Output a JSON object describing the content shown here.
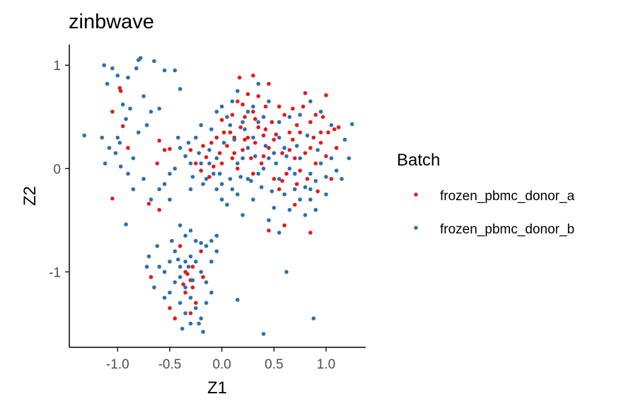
{
  "chart_data": {
    "type": "scatter",
    "title": "zinbwave",
    "xlabel": "Z1",
    "ylabel": "Z2",
    "xlim": [
      -1.45,
      1.38
    ],
    "ylim": [
      -1.73,
      1.2
    ],
    "xticks": [
      -1.0,
      -0.5,
      0.0,
      0.5,
      1.0
    ],
    "xtick_labels": [
      "-1.0",
      "-0.5",
      "0.0",
      "0.5",
      "1.0"
    ],
    "yticks": [
      -1,
      0,
      1
    ],
    "ytick_labels": [
      "-1",
      "0",
      "1"
    ],
    "grid": false,
    "legend": {
      "title": "Batch",
      "position": "right",
      "entries": [
        {
          "label": "frozen_pbmc_donor_a",
          "color": "#e41a1c"
        },
        {
          "label": "frozen_pbmc_donor_b",
          "color": "#2c6fad"
        }
      ]
    },
    "series": [
      {
        "name": "frozen_pbmc_donor_a",
        "color": "#e41a1c",
        "points": [
          [
            -0.98,
            0.78
          ],
          [
            -0.97,
            0.75
          ],
          [
            -0.95,
            0.41
          ],
          [
            -1.05,
            0.55
          ],
          [
            -0.9,
            0.2
          ],
          [
            -1.05,
            -0.29
          ],
          [
            -0.6,
            0.27
          ],
          [
            -0.62,
            0.05
          ],
          [
            -0.7,
            -0.34
          ],
          [
            -0.6,
            -0.4
          ],
          [
            -0.55,
            0.18
          ],
          [
            -0.5,
            0.19
          ],
          [
            -0.3,
            0.18
          ],
          [
            -0.25,
            0.05
          ],
          [
            -0.2,
            -0.02
          ],
          [
            -0.15,
            0.11
          ],
          [
            -0.1,
            0.25
          ],
          [
            -0.12,
            -0.08
          ],
          [
            -0.05,
            0.3
          ],
          [
            0.0,
            0.05
          ],
          [
            0.05,
            0.22
          ],
          [
            0.1,
            0.1
          ],
          [
            0.12,
            0.3
          ],
          [
            0.15,
            0.0
          ],
          [
            0.18,
            0.4
          ],
          [
            0.2,
            0.18
          ],
          [
            0.22,
            0.5
          ],
          [
            0.25,
            0.3
          ],
          [
            0.28,
            0.1
          ],
          [
            0.3,
            0.55
          ],
          [
            0.32,
            0.25
          ],
          [
            0.35,
            0.4
          ],
          [
            0.38,
            0.05
          ],
          [
            0.4,
            0.32
          ],
          [
            0.42,
            0.6
          ],
          [
            0.45,
            0.2
          ],
          [
            0.48,
            0.45
          ],
          [
            0.5,
            -0.1
          ],
          [
            0.52,
            0.33
          ],
          [
            0.55,
            -0.2
          ],
          [
            0.58,
            0.15
          ],
          [
            0.6,
            0.52
          ],
          [
            0.62,
            -0.05
          ],
          [
            0.65,
            0.35
          ],
          [
            0.68,
            0.58
          ],
          [
            0.7,
            0.1
          ],
          [
            0.72,
            -0.15
          ],
          [
            0.75,
            0.35
          ],
          [
            0.78,
            0.6
          ],
          [
            0.8,
            0.15
          ],
          [
            0.82,
            -0.1
          ],
          [
            0.85,
            0.45
          ],
          [
            0.88,
            0.3
          ],
          [
            0.9,
            0.05
          ],
          [
            0.92,
            -0.22
          ],
          [
            0.95,
            0.25
          ],
          [
            0.97,
            0.5
          ],
          [
            1.0,
            0.12
          ],
          [
            1.02,
            0.35
          ],
          [
            1.05,
            -0.1
          ],
          [
            1.1,
            0.2
          ],
          [
            1.12,
            0.4
          ],
          [
            0.17,
            0.88
          ],
          [
            0.3,
            0.9
          ],
          [
            0.45,
            0.82
          ],
          [
            0.35,
            0.7
          ],
          [
            0.8,
            0.73
          ],
          [
            0.9,
            0.52
          ],
          [
            1.0,
            0.71
          ],
          [
            1.08,
            0.38
          ],
          [
            0.6,
            -0.55
          ],
          [
            0.85,
            -0.62
          ],
          [
            0.45,
            -0.6
          ],
          [
            0.7,
            -0.35
          ],
          [
            0.08,
            0.35
          ],
          [
            0.0,
            0.47
          ],
          [
            0.15,
            0.65
          ],
          [
            0.25,
            0.72
          ],
          [
            -0.35,
            -1.0
          ],
          [
            -0.3,
            -1.08
          ],
          [
            -0.28,
            -0.95
          ],
          [
            -0.35,
            -1.2
          ],
          [
            -0.25,
            -1.3
          ],
          [
            -0.5,
            -1.35
          ],
          [
            -0.68,
            -1.05
          ],
          [
            -0.45,
            -1.45
          ],
          [
            -0.3,
            -1.4
          ],
          [
            -0.2,
            -0.8
          ],
          [
            -0.4,
            -0.75
          ],
          [
            -0.33,
            -1.02
          ],
          [
            -0.28,
            -1.15
          ],
          [
            -0.37,
            -1.12
          ],
          [
            -0.18,
            -1.05
          ],
          [
            0.55,
            0.6
          ],
          [
            0.65,
            0.18
          ],
          [
            0.72,
            0.42
          ],
          [
            0.5,
            0.28
          ],
          [
            0.4,
            0.12
          ],
          [
            0.3,
            -0.05
          ],
          [
            0.2,
            0.62
          ],
          [
            0.1,
            0.52
          ],
          [
            -0.02,
            0.15
          ],
          [
            -0.08,
            0.02
          ],
          [
            -0.18,
            0.22
          ],
          [
            0.95,
            0.35
          ],
          [
            0.85,
            0.2
          ],
          [
            0.75,
            -0.02
          ],
          [
            0.68,
            0.28
          ],
          [
            0.58,
            -0.12
          ],
          [
            0.42,
            0.38
          ],
          [
            0.32,
            0.48
          ],
          [
            0.22,
            0.28
          ],
          [
            0.12,
            0.15
          ],
          [
            0.02,
            0.35
          ]
        ]
      },
      {
        "name": "frozen_pbmc_donor_b",
        "color": "#2c6fad",
        "points": [
          [
            -1.13,
            1.0
          ],
          [
            -1.05,
            0.97
          ],
          [
            -0.8,
            1.05
          ],
          [
            -0.78,
            1.07
          ],
          [
            -0.65,
            1.04
          ],
          [
            -0.55,
            0.95
          ],
          [
            -0.82,
            0.97
          ],
          [
            -0.9,
            0.88
          ],
          [
            -1.0,
            0.9
          ],
          [
            -1.1,
            0.82
          ],
          [
            -0.95,
            0.62
          ],
          [
            -0.88,
            0.58
          ],
          [
            -0.75,
            0.7
          ],
          [
            -0.72,
            0.42
          ],
          [
            -0.68,
            0.55
          ],
          [
            -1.0,
            0.3
          ],
          [
            -1.08,
            0.2
          ],
          [
            -1.12,
            0.05
          ],
          [
            -0.85,
            0.1
          ],
          [
            -0.8,
            0.35
          ],
          [
            -1.02,
            0.15
          ],
          [
            -0.92,
            0.48
          ],
          [
            -1.15,
            0.3
          ],
          [
            -0.97,
            0.02
          ],
          [
            -0.9,
            -0.05
          ],
          [
            -1.32,
            0.32
          ],
          [
            -0.45,
            0.95
          ],
          [
            -0.4,
            0.77
          ],
          [
            -0.6,
            0.58
          ],
          [
            -0.98,
            0.25
          ],
          [
            -0.85,
            -0.2
          ],
          [
            -0.75,
            -0.1
          ],
          [
            -0.92,
            -0.54
          ],
          [
            -0.55,
            -0.15
          ],
          [
            -0.45,
            0.0
          ],
          [
            -0.5,
            -0.3
          ],
          [
            -0.3,
            -0.2
          ],
          [
            -0.4,
            0.2
          ],
          [
            -0.35,
            0.12
          ],
          [
            -0.25,
            0.3
          ],
          [
            -0.2,
            0.42
          ],
          [
            -0.1,
            0.38
          ],
          [
            -0.05,
            0.55
          ],
          [
            0.0,
            0.6
          ],
          [
            0.05,
            0.5
          ],
          [
            0.08,
            0.42
          ],
          [
            -0.12,
            0.18
          ],
          [
            -0.2,
            0.05
          ],
          [
            -0.08,
            -0.05
          ],
          [
            0.0,
            -0.15
          ],
          [
            0.1,
            -0.2
          ],
          [
            0.05,
            -0.35
          ],
          [
            0.15,
            -0.25
          ],
          [
            0.25,
            -0.1
          ],
          [
            0.3,
            -0.3
          ],
          [
            0.2,
            -0.45
          ],
          [
            0.35,
            -0.05
          ],
          [
            0.4,
            0.0
          ],
          [
            0.45,
            0.1
          ],
          [
            0.5,
            0.15
          ],
          [
            0.55,
            0.3
          ],
          [
            0.6,
            0.2
          ],
          [
            0.65,
            0.0
          ],
          [
            0.7,
            -0.05
          ],
          [
            0.75,
            0.1
          ],
          [
            0.8,
            -0.18
          ],
          [
            0.85,
            -0.05
          ],
          [
            0.9,
            -0.12
          ],
          [
            0.95,
            0.05
          ],
          [
            1.0,
            -0.08
          ],
          [
            1.05,
            0.1
          ],
          [
            1.1,
            -0.02
          ],
          [
            0.55,
            -0.1
          ],
          [
            0.6,
            -0.25
          ],
          [
            0.65,
            -0.4
          ],
          [
            0.7,
            -0.2
          ],
          [
            0.75,
            -0.3
          ],
          [
            0.8,
            -0.45
          ],
          [
            0.85,
            -0.3
          ],
          [
            0.9,
            -0.4
          ],
          [
            0.5,
            -0.38
          ],
          [
            0.45,
            -0.5
          ],
          [
            0.55,
            -0.62
          ],
          [
            0.62,
            -1.0
          ],
          [
            0.88,
            -1.45
          ],
          [
            0.4,
            -1.6
          ],
          [
            0.15,
            -1.27
          ],
          [
            0.0,
            -0.3
          ],
          [
            -0.05,
            -0.2
          ],
          [
            -0.18,
            -0.15
          ],
          [
            0.15,
            0.05
          ],
          [
            0.2,
            0.1
          ],
          [
            0.25,
            0.2
          ],
          [
            0.3,
            0.3
          ],
          [
            0.35,
            0.45
          ],
          [
            0.4,
            0.5
          ],
          [
            0.3,
            0.6
          ],
          [
            0.25,
            0.55
          ],
          [
            0.2,
            0.45
          ],
          [
            0.1,
            0.65
          ],
          [
            0.15,
            0.75
          ],
          [
            0.35,
            0.82
          ],
          [
            0.45,
            0.65
          ],
          [
            0.55,
            0.45
          ],
          [
            0.65,
            0.5
          ],
          [
            0.75,
            0.52
          ],
          [
            0.85,
            0.65
          ],
          [
            0.95,
            0.55
          ],
          [
            1.05,
            0.42
          ],
          [
            1.18,
            0.28
          ],
          [
            1.25,
            0.43
          ],
          [
            1.22,
            0.1
          ],
          [
            1.15,
            -0.1
          ],
          [
            1.0,
            -0.25
          ],
          [
            0.85,
            -0.2
          ],
          [
            -0.3,
            0.05
          ],
          [
            -0.28,
            -0.08
          ],
          [
            -0.15,
            -0.1
          ],
          [
            -0.05,
            0.1
          ],
          [
            0.02,
            0.25
          ],
          [
            0.12,
            0.28
          ],
          [
            0.22,
            0.38
          ],
          [
            0.32,
            0.12
          ],
          [
            0.42,
            0.22
          ],
          [
            0.52,
            0.05
          ],
          [
            0.62,
            0.12
          ],
          [
            0.72,
            0.22
          ],
          [
            0.82,
            0.32
          ],
          [
            0.92,
            0.18
          ],
          [
            0.48,
            -0.22
          ],
          [
            0.38,
            -0.18
          ],
          [
            0.28,
            -0.12
          ],
          [
            0.18,
            -0.08
          ],
          [
            0.08,
            -0.1
          ],
          [
            -0.02,
            -0.05
          ],
          [
            -0.12,
            0.05
          ],
          [
            -0.22,
            0.15
          ],
          [
            -0.32,
            0.25
          ],
          [
            -0.42,
            0.3
          ],
          [
            -0.5,
            -0.05
          ],
          [
            -0.6,
            -0.2
          ],
          [
            -0.68,
            -0.3
          ],
          [
            -0.4,
            -0.55
          ],
          [
            -0.35,
            -0.65
          ],
          [
            -0.3,
            -0.6
          ],
          [
            -0.25,
            -0.7
          ],
          [
            -0.2,
            -0.72
          ],
          [
            -0.15,
            -0.75
          ],
          [
            -0.1,
            -0.7
          ],
          [
            -0.05,
            -0.65
          ],
          [
            -0.45,
            -0.8
          ],
          [
            -0.5,
            -0.9
          ],
          [
            -0.55,
            -1.0
          ],
          [
            -0.6,
            -0.95
          ],
          [
            -0.4,
            -1.05
          ],
          [
            -0.35,
            -1.15
          ],
          [
            -0.3,
            -1.25
          ],
          [
            -0.25,
            -1.35
          ],
          [
            -0.2,
            -1.45
          ],
          [
            -0.15,
            -1.3
          ],
          [
            -0.1,
            -1.2
          ],
          [
            -0.15,
            -1.1
          ],
          [
            -0.2,
            -1.0
          ],
          [
            -0.25,
            -0.9
          ],
          [
            -0.3,
            -0.85
          ],
          [
            -0.35,
            -0.9
          ],
          [
            -0.4,
            -0.95
          ],
          [
            -0.45,
            -1.1
          ],
          [
            -0.5,
            -1.2
          ],
          [
            -0.55,
            -1.25
          ],
          [
            -0.4,
            -1.3
          ],
          [
            -0.35,
            -1.4
          ],
          [
            -0.38,
            -1.55
          ],
          [
            -0.3,
            -1.5
          ],
          [
            -0.22,
            -1.5
          ],
          [
            -0.18,
            -1.58
          ],
          [
            -0.1,
            -0.9
          ],
          [
            -0.05,
            -0.8
          ],
          [
            -0.62,
            -0.75
          ],
          [
            -0.7,
            -0.85
          ],
          [
            -0.72,
            -0.95
          ],
          [
            -0.65,
            -1.15
          ],
          [
            -0.28,
            -1.08
          ],
          [
            -0.32,
            -0.95
          ],
          [
            -0.42,
            -0.88
          ],
          [
            -0.48,
            -0.7
          ]
        ]
      }
    ]
  }
}
